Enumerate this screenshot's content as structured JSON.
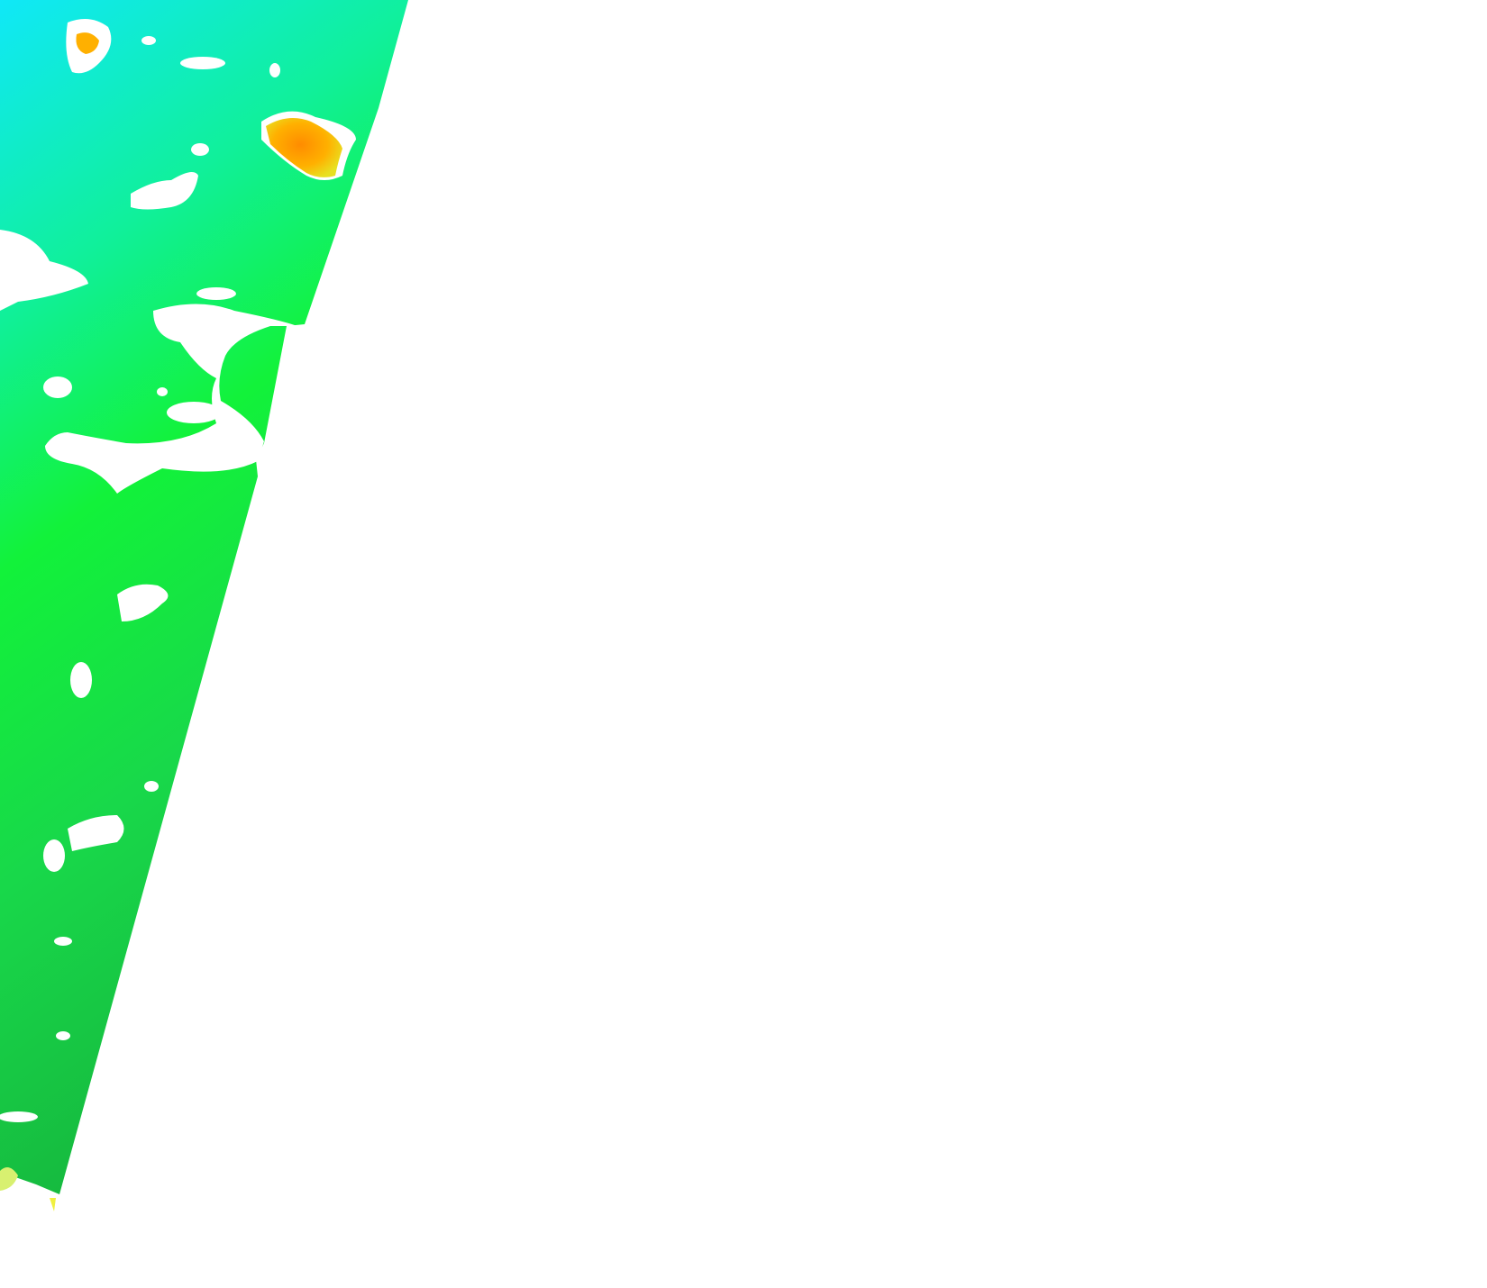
{
  "map": {
    "type": "satellite-swath",
    "colors": {
      "background": "#ffffff",
      "swath_top": "#10e8f0",
      "swath_mid": "#12f23a",
      "swath_bottom": "#16c44a",
      "cloud": "#ffffff",
      "hotspot": "#ff9a00",
      "hotspot_light": "#f5e020",
      "edge_yellow": "#d8f070"
    }
  }
}
